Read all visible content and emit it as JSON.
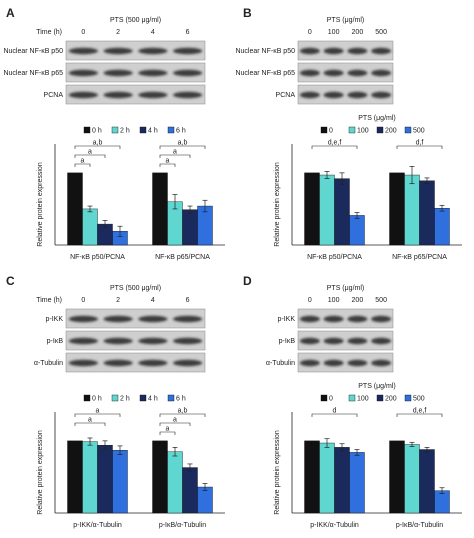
{
  "chart_data": [
    {
      "type": "bar",
      "panel": "A",
      "blot": {
        "header": "PTS (500 μg/ml)",
        "lane_title": "Time (h)",
        "lanes": [
          "0",
          "2",
          "4",
          "6"
        ],
        "rows": [
          "Nuclear NF-κB p50",
          "Nuclear NF-κB p65",
          "PCNA"
        ]
      },
      "ylabel": "Relative protein expression",
      "ylim": [
        0,
        1.4
      ],
      "categories": [
        "NF-κB p50/PCNA",
        "NF-κB p65/PCNA"
      ],
      "series": [
        {
          "name": "0 h",
          "color": "#111111",
          "values": [
            1,
            1
          ],
          "errors": [
            0,
            0
          ]
        },
        {
          "name": "2 h",
          "color": "#5fd6d0",
          "values": [
            0.5,
            0.6
          ],
          "errors": [
            0.04,
            0.1
          ]
        },
        {
          "name": "4 h",
          "color": "#1b2a5c",
          "values": [
            0.29,
            0.49
          ],
          "errors": [
            0.05,
            0.05
          ]
        },
        {
          "name": "6 h",
          "color": "#2f6fde",
          "values": [
            0.19,
            0.54
          ],
          "errors": [
            0.07,
            0.08
          ]
        }
      ],
      "annotations": [
        [
          "a,b",
          "a",
          "a"
        ],
        [
          "a,b",
          "a",
          "a"
        ]
      ]
    },
    {
      "type": "bar",
      "panel": "B",
      "blot": {
        "header": "PTS (μg/ml)",
        "lanes": [
          "0",
          "100",
          "200",
          "500"
        ],
        "rows": [
          "Nuclear NF-κB p50",
          "Nuclear NF-κB p65",
          "PCNA"
        ]
      },
      "legend_title": "PTS (μg/ml)",
      "ylabel": "Relative protein expression",
      "ylim": [
        0,
        1.4
      ],
      "categories": [
        "NF-κB p50/PCNA",
        "NF-κB p65/PCNA"
      ],
      "series": [
        {
          "name": "0",
          "color": "#111111",
          "values": [
            1,
            1
          ],
          "errors": [
            0,
            0
          ]
        },
        {
          "name": "100",
          "color": "#5fd6d0",
          "values": [
            0.97,
            0.97
          ],
          "errors": [
            0.05,
            0.12
          ]
        },
        {
          "name": "200",
          "color": "#1b2a5c",
          "values": [
            0.92,
            0.89
          ],
          "errors": [
            0.08,
            0.04
          ]
        },
        {
          "name": "500",
          "color": "#2f6fde",
          "values": [
            0.41,
            0.51
          ],
          "errors": [
            0.04,
            0.04
          ]
        }
      ],
      "annotations": [
        [
          "d,e,f"
        ],
        [
          "d,f"
        ]
      ]
    },
    {
      "type": "bar",
      "panel": "C",
      "blot": {
        "header": "PTS (500 μg/ml)",
        "lane_title": "Time (h)",
        "lanes": [
          "0",
          "2",
          "4",
          "6"
        ],
        "rows": [
          "p-IKK",
          "p-IκB",
          "α-Tubulin"
        ]
      },
      "ylabel": "Relative protein expression",
      "ylim": [
        0,
        1.4
      ],
      "categories": [
        "p-IKK/α-Tubulin",
        "p-IκB/α-Tubulin"
      ],
      "series": [
        {
          "name": "0 h",
          "color": "#111111",
          "values": [
            1,
            1
          ],
          "errors": [
            0,
            0
          ]
        },
        {
          "name": "2 h",
          "color": "#5fd6d0",
          "values": [
            0.99,
            0.85
          ],
          "errors": [
            0.05,
            0.06
          ]
        },
        {
          "name": "4 h",
          "color": "#1b2a5c",
          "values": [
            0.94,
            0.63
          ],
          "errors": [
            0.06,
            0.05
          ]
        },
        {
          "name": "6 h",
          "color": "#2f6fde",
          "values": [
            0.87,
            0.36
          ],
          "errors": [
            0.06,
            0.05
          ]
        }
      ],
      "annotations": [
        [
          "a",
          "a"
        ],
        [
          "a,b",
          "a",
          "a"
        ]
      ]
    },
    {
      "type": "bar",
      "panel": "D",
      "blot": {
        "header": "PTS (μg/ml)",
        "lanes": [
          "0",
          "100",
          "200",
          "500"
        ],
        "rows": [
          "p-IKK",
          "p-IκB",
          "α-Tubulin"
        ]
      },
      "legend_title": "PTS (μg/ml)",
      "ylabel": "Relative protein expression",
      "ylim": [
        0,
        1.4
      ],
      "categories": [
        "p-IKK/α-Tubulin",
        "p-IκB/α-Tubulin"
      ],
      "series": [
        {
          "name": "0",
          "color": "#111111",
          "values": [
            1,
            1
          ],
          "errors": [
            0,
            0
          ]
        },
        {
          "name": "100",
          "color": "#5fd6d0",
          "values": [
            0.97,
            0.95
          ],
          "errors": [
            0.06,
            0.03
          ]
        },
        {
          "name": "200",
          "color": "#1b2a5c",
          "values": [
            0.91,
            0.88
          ],
          "errors": [
            0.05,
            0.03
          ]
        },
        {
          "name": "500",
          "color": "#2f6fde",
          "values": [
            0.84,
            0.31
          ],
          "errors": [
            0.04,
            0.04
          ]
        }
      ],
      "annotations": [
        [
          "d"
        ],
        [
          "d,e,f"
        ]
      ]
    }
  ]
}
